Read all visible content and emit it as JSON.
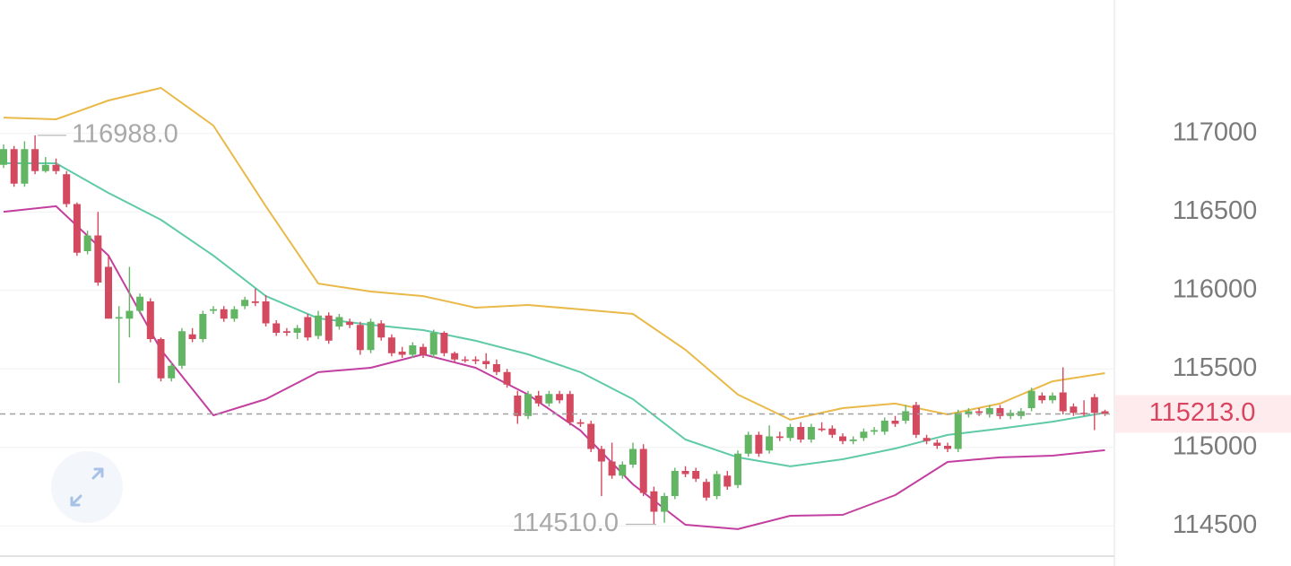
{
  "chart_data": {
    "type": "candlestick",
    "up_color": "#62b563",
    "down_color": "#d3495f",
    "ylim": [
      114250,
      117850
    ],
    "yticks": [
      114500,
      115000,
      115500,
      116000,
      116500,
      117000
    ],
    "grid": true,
    "ohlc": [
      [
        116800,
        116930,
        116780,
        116900
      ],
      [
        116900,
        116920,
        116660,
        116680
      ],
      [
        116680,
        116950,
        116660,
        116900
      ],
      [
        116900,
        116988,
        116740,
        116760
      ],
      [
        116760,
        116850,
        116750,
        116800
      ],
      [
        116800,
        116840,
        116740,
        116760
      ],
      [
        116740,
        116760,
        116530,
        116550
      ],
      [
        116550,
        116560,
        116220,
        116240
      ],
      [
        116250,
        116380,
        116230,
        116350
      ],
      [
        116350,
        116500,
        116030,
        116050
      ],
      [
        116150,
        116220,
        115820,
        115820
      ],
      [
        115820,
        115900,
        115410,
        115830
      ],
      [
        115820,
        116150,
        115700,
        115870
      ],
      [
        115870,
        115980,
        115850,
        115960
      ],
      [
        115930,
        115950,
        115670,
        115690
      ],
      [
        115690,
        115700,
        115420,
        115440
      ],
      [
        115440,
        115540,
        115420,
        115520
      ],
      [
        115520,
        115760,
        115500,
        115740
      ],
      [
        115720,
        115760,
        115670,
        115690
      ],
      [
        115690,
        115870,
        115670,
        115850
      ],
      [
        115870,
        115900,
        115850,
        115880
      ],
      [
        115880,
        115900,
        115800,
        115820
      ],
      [
        115820,
        115900,
        115800,
        115880
      ],
      [
        115900,
        115960,
        115880,
        115940
      ],
      [
        115930,
        116010,
        115900,
        115920
      ],
      [
        115930,
        115970,
        115770,
        115790
      ],
      [
        115790,
        115810,
        115710,
        115730
      ],
      [
        115740,
        115760,
        115710,
        115730
      ],
      [
        115730,
        115780,
        115690,
        115760
      ],
      [
        115830,
        115850,
        115680,
        115700
      ],
      [
        115710,
        115870,
        115690,
        115840
      ],
      [
        115840,
        115860,
        115660,
        115680
      ],
      [
        115770,
        115850,
        115750,
        115830
      ],
      [
        115800,
        115820,
        115760,
        115780
      ],
      [
        115780,
        115800,
        115590,
        115620
      ],
      [
        115620,
        115820,
        115600,
        115800
      ],
      [
        115790,
        115810,
        115680,
        115700
      ],
      [
        115700,
        115720,
        115580,
        115600
      ],
      [
        115610,
        115640,
        115570,
        115590
      ],
      [
        115590,
        115670,
        115570,
        115650
      ],
      [
        115640,
        115660,
        115570,
        115590
      ],
      [
        115590,
        115750,
        115570,
        115730
      ],
      [
        115730,
        115740,
        115580,
        115600
      ],
      [
        115600,
        115610,
        115540,
        115560
      ],
      [
        115560,
        115580,
        115540,
        115560
      ],
      [
        115560,
        115580,
        115530,
        115550
      ],
      [
        115550,
        115600,
        115500,
        115530
      ],
      [
        115530,
        115560,
        115460,
        115480
      ],
      [
        115480,
        115500,
        115380,
        115400
      ],
      [
        115330,
        115360,
        115150,
        115200
      ],
      [
        115200,
        115360,
        115180,
        115340
      ],
      [
        115330,
        115360,
        115260,
        115280
      ],
      [
        115280,
        115360,
        115260,
        115340
      ],
      [
        115340,
        115360,
        115280,
        115300
      ],
      [
        115340,
        115360,
        115140,
        115160
      ],
      [
        115160,
        115180,
        115130,
        115150
      ],
      [
        115150,
        115170,
        114970,
        114990
      ],
      [
        114990,
        115010,
        114690,
        114910
      ],
      [
        114910,
        115030,
        114800,
        114820
      ],
      [
        114820,
        114910,
        114800,
        114890
      ],
      [
        114890,
        115030,
        114870,
        114990
      ],
      [
        114990,
        115020,
        114690,
        114710
      ],
      [
        114720,
        114750,
        114510,
        114590
      ],
      [
        114590,
        114710,
        114520,
        114690
      ],
      [
        114690,
        114870,
        114670,
        114850
      ],
      [
        114850,
        114880,
        114810,
        114830
      ],
      [
        114850,
        114870,
        114780,
        114800
      ],
      [
        114780,
        114800,
        114660,
        114680
      ],
      [
        114690,
        114850,
        114670,
        114830
      ],
      [
        114820,
        114850,
        114730,
        114750
      ],
      [
        114760,
        114980,
        114740,
        114960
      ],
      [
        114960,
        115100,
        114940,
        115080
      ],
      [
        115080,
        115100,
        114940,
        114960
      ],
      [
        114980,
        115140,
        114960,
        115070
      ],
      [
        115070,
        115100,
        115040,
        115060
      ],
      [
        115060,
        115150,
        115040,
        115130
      ],
      [
        115130,
        115160,
        115030,
        115050
      ],
      [
        115050,
        115150,
        115030,
        115130
      ],
      [
        115120,
        115160,
        115100,
        115110
      ],
      [
        115120,
        115140,
        115060,
        115080
      ],
      [
        115070,
        115090,
        115020,
        115040
      ],
      [
        115040,
        115070,
        115020,
        115050
      ],
      [
        115060,
        115120,
        115040,
        115100
      ],
      [
        115100,
        115130,
        115080,
        115110
      ],
      [
        115100,
        115190,
        115080,
        115170
      ],
      [
        115170,
        115200,
        115130,
        115150
      ],
      [
        115170,
        115270,
        115150,
        115230
      ],
      [
        115270,
        115290,
        115060,
        115080
      ],
      [
        115060,
        115080,
        115020,
        115040
      ],
      [
        115030,
        115050,
        114990,
        115010
      ],
      [
        115010,
        115030,
        114970,
        114990
      ],
      [
        114990,
        115240,
        114970,
        115220
      ],
      [
        115210,
        115250,
        115190,
        115230
      ],
      [
        115230,
        115250,
        115200,
        115220
      ],
      [
        115210,
        115270,
        115190,
        115250
      ],
      [
        115250,
        115270,
        115180,
        115200
      ],
      [
        115200,
        115240,
        115180,
        115220
      ],
      [
        115200,
        115250,
        115180,
        115230
      ],
      [
        115250,
        115380,
        115230,
        115360
      ],
      [
        115330,
        115350,
        115280,
        115300
      ],
      [
        115300,
        115350,
        115280,
        115330
      ],
      [
        115350,
        115510,
        115210,
        115230
      ],
      [
        115260,
        115280,
        115200,
        115220
      ],
      [
        115220,
        115300,
        115200,
        115220
      ],
      [
        115320,
        115340,
        115110,
        115220
      ],
      [
        115230,
        115240,
        115200,
        115213
      ]
    ],
    "series": [
      {
        "color": "#e9b949",
        "x": [
          0,
          5,
          10,
          15,
          20,
          25,
          30,
          35,
          40,
          45,
          50,
          55,
          60,
          65,
          70,
          75,
          80,
          85,
          90,
          95,
          100,
          105
        ],
        "values": [
          117101,
          117090,
          117210,
          117290,
          117050,
          116536,
          116044,
          115993,
          115964,
          115890,
          115907,
          115879,
          115850,
          115622,
          115336,
          115176,
          115250,
          115279,
          115210,
          115279,
          115421,
          115473
        ]
      },
      {
        "color": "#5fcaa8",
        "x": [
          0,
          5,
          10,
          15,
          20,
          25,
          30,
          35,
          40,
          45,
          50,
          55,
          60,
          65,
          70,
          75,
          80,
          85,
          90,
          95,
          100,
          105
        ],
        "values": [
          116810,
          116810,
          116621,
          116450,
          116222,
          115964,
          115822,
          115781,
          115747,
          115679,
          115593,
          115479,
          115307,
          115050,
          114936,
          114879,
          114924,
          114993,
          115079,
          115119,
          115164,
          115221
        ]
      },
      {
        "color": "#c33f9f",
        "x": [
          0,
          5,
          10,
          15,
          20,
          25,
          30,
          35,
          40,
          45,
          50,
          55,
          60,
          65,
          70,
          75,
          80,
          85,
          90,
          95,
          100,
          105
        ],
        "values": [
          116501,
          116536,
          116222,
          115622,
          115204,
          115307,
          115479,
          115507,
          115593,
          115507,
          115336,
          115107,
          114764,
          114507,
          114479,
          114564,
          114570,
          114696,
          114907,
          114936,
          114947,
          114982
        ]
      }
    ],
    "annotations": [
      {
        "value": 116988,
        "label": "116988.0"
      },
      {
        "value": 114510,
        "label": "114510.0"
      }
    ],
    "last_price": {
      "value": 115213,
      "label": "115213.0",
      "color": "#d9455f"
    }
  }
}
